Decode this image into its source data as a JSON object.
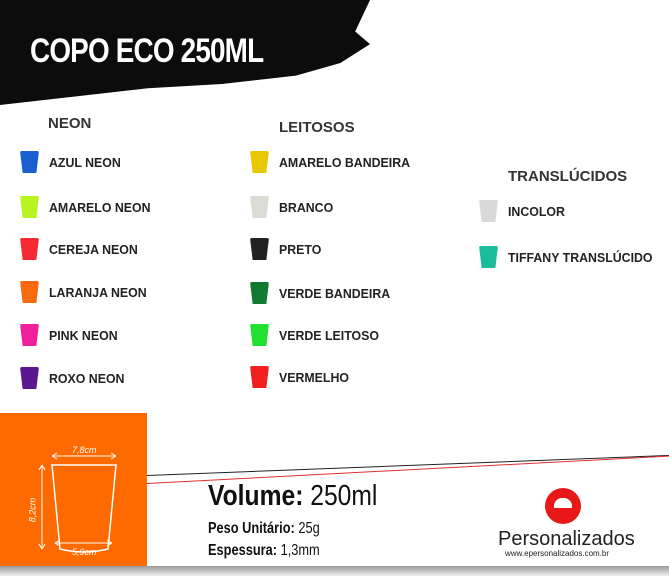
{
  "title": "COPO ECO 250ML",
  "groups": [
    {
      "heading": "NEON",
      "items": [
        {
          "label": "AZUL NEON",
          "color": "#1a5fd0"
        },
        {
          "label": "AMARELO NEON",
          "color": "#b8f520"
        },
        {
          "label": "CEREJA NEON",
          "color": "#f52a35"
        },
        {
          "label": "LARANJA NEON",
          "color": "#f86a10"
        },
        {
          "label": "PINK NEON",
          "color": "#f0209a"
        },
        {
          "label": "ROXO NEON",
          "color": "#5a1890"
        }
      ]
    },
    {
      "heading": "LEITOSOS",
      "items": [
        {
          "label": "AMARELO BANDEIRA",
          "color": "#e8c800"
        },
        {
          "label": "BRANCO",
          "color": "#dcdad5"
        },
        {
          "label": "PRETO",
          "color": "#222222"
        },
        {
          "label": "VERDE BANDEIRA",
          "color": "#117a30"
        },
        {
          "label": "VERDE LEITOSO",
          "color": "#22e030"
        },
        {
          "label": "VERMELHO",
          "color": "#f02020"
        }
      ]
    },
    {
      "heading": "TRANSLÚCIDOS",
      "items": [
        {
          "label": "INCOLOR",
          "color": "#d8d8d8"
        },
        {
          "label": "TIFFANY TRANSLÚCIDO",
          "color": "#1abc9c"
        }
      ]
    }
  ],
  "dimensions": {
    "top": "7,8cm",
    "height": "8,2cm",
    "bottom": "5,9cm"
  },
  "specs": {
    "volume_label": "Volume:",
    "volume_value": "250ml",
    "weight_label": "Peso Unitário:",
    "weight_value": "25g",
    "thickness_label": "Espessura:",
    "thickness_value": "1,3mm"
  },
  "brand": {
    "name": "Personalizados",
    "url": "www.epersonalizados.com.br",
    "accent": "#e81818"
  },
  "accent_orange": "#ff6a00"
}
